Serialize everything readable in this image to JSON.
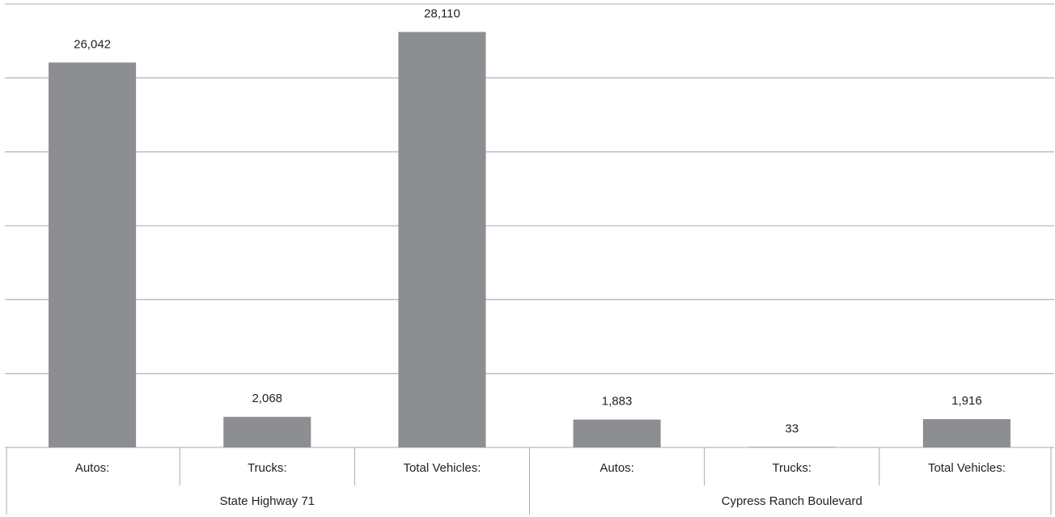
{
  "chart_data": {
    "type": "bar",
    "groups": [
      {
        "name": "State Highway 71",
        "categories": [
          "Autos:",
          "Trucks:",
          "Total Vehicles:"
        ]
      },
      {
        "name": "Cypress Ranch Boulevard",
        "categories": [
          "Autos:",
          "Trucks:",
          "Total Vehicles:"
        ]
      }
    ],
    "values": [
      26042,
      2068,
      28110,
      1883,
      33,
      1916
    ],
    "value_labels": [
      "26,042",
      "2,068",
      "28,110",
      "1,883",
      "33",
      "1,916"
    ],
    "color": "#8d8e92",
    "ylim": [
      0,
      30000
    ],
    "yticks": [
      0,
      5000,
      10000,
      15000,
      20000,
      25000,
      30000
    ],
    "grid": true
  }
}
